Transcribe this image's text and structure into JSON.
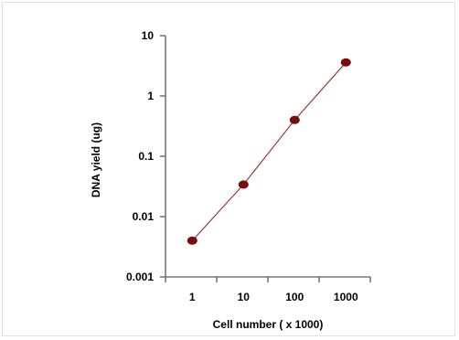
{
  "chart_data": {
    "type": "line",
    "title": "",
    "xlabel": "Cell number ( x 1000)",
    "ylabel": "DNA yield (ug)",
    "x_scale": "log",
    "y_scale": "log",
    "x_tick_labels": [
      "1",
      "10",
      "100",
      "1000"
    ],
    "y_tick_labels": [
      "10",
      "1",
      "0.1",
      "0.01",
      "0.001"
    ],
    "xlim": [
      0.3,
      3000
    ],
    "ylim": [
      0.001,
      10
    ],
    "grid": false,
    "legend": "none",
    "series": [
      {
        "x": [
          1,
          10,
          100,
          1000
        ],
        "y": [
          0.004,
          0.034,
          0.4,
          3.6
        ],
        "marker_color": "#7a0c0c",
        "line_color": "#9a3b3b"
      }
    ]
  }
}
